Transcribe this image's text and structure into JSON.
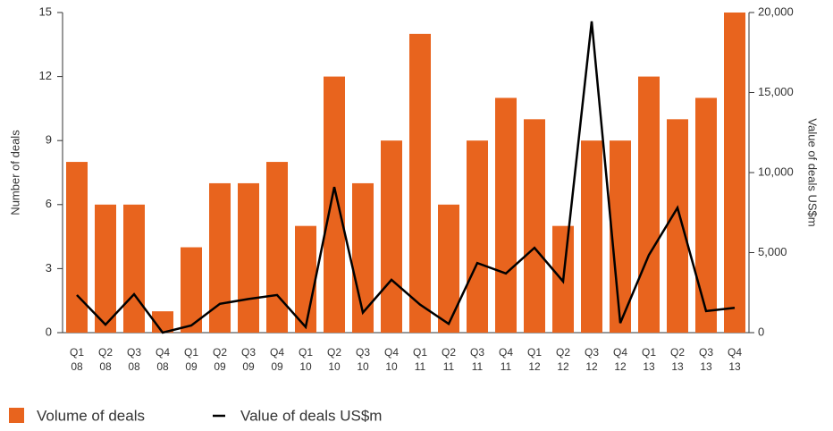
{
  "chart_data": {
    "type": "bar_line",
    "categories": [
      "Q1\n08",
      "Q2\n08",
      "Q3\n08",
      "Q4\n08",
      "Q1\n09",
      "Q2\n09",
      "Q3\n09",
      "Q4\n09",
      "Q1\n10",
      "Q2\n10",
      "Q3\n10",
      "Q4\n10",
      "Q1\n11",
      "Q2\n11",
      "Q3\n11",
      "Q4\n11",
      "Q1\n12",
      "Q2\n12",
      "Q3\n12",
      "Q4\n12",
      "Q1\n13",
      "Q2\n13",
      "Q3\n13",
      "Q4\n13"
    ],
    "series": [
      {
        "name": "Volume of deals",
        "type": "bar",
        "color": "#e8641e",
        "values": [
          8,
          6,
          6,
          1,
          4,
          7,
          7,
          8,
          5,
          12,
          7,
          9,
          14,
          6,
          9,
          11,
          10,
          5,
          9,
          9,
          12,
          10,
          11,
          15
        ]
      },
      {
        "name": "Value of deals US$m",
        "type": "line",
        "axis": "y2",
        "color": "#000000",
        "values": [
          2350,
          500,
          2400,
          0,
          450,
          1800,
          2100,
          2350,
          350,
          9100,
          1250,
          3300,
          1750,
          550,
          4350,
          3700,
          5300,
          3200,
          19450,
          600,
          4850,
          7800,
          1350,
          1550
        ]
      }
    ],
    "ylabel": "Number of deals",
    "y2label": "Value of deals US$m",
    "ylim": [
      0,
      15
    ],
    "yticks": [
      0,
      3,
      6,
      9,
      12,
      15
    ],
    "y2lim": [
      0,
      20000
    ],
    "y2ticks": [
      0,
      {
        "value": 5000,
        "label": "5,000"
      },
      {
        "value": 10000,
        "label": "10,000"
      },
      {
        "value": 15000,
        "label": "15,000"
      },
      {
        "value": 20000,
        "label": "20,000"
      }
    ],
    "legend": "bottom-left"
  }
}
